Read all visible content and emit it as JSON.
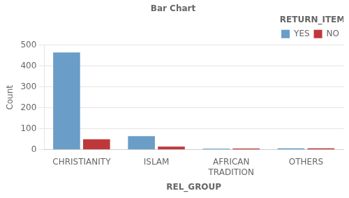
{
  "chart_data": {
    "type": "bar",
    "title": "Bar Chart",
    "xlabel": "REL_GROUP",
    "ylabel": "Count",
    "legend_title": "RETURN_ITEM",
    "categories": [
      "CHRISTIANITY",
      "ISLAM",
      "AFRICAN\nTRADITION",
      "OTHERS"
    ],
    "series": [
      {
        "name": "YES",
        "color": "#6A9DC8",
        "values": [
          465,
          65,
          5,
          7
        ]
      },
      {
        "name": "NO",
        "color": "#C0373A",
        "values": [
          50,
          15,
          6,
          7
        ]
      }
    ],
    "ylim": [
      0,
      500
    ],
    "yticks": [
      0,
      100,
      200,
      300,
      400,
      500
    ],
    "grid": true,
    "legend": "upper right"
  }
}
